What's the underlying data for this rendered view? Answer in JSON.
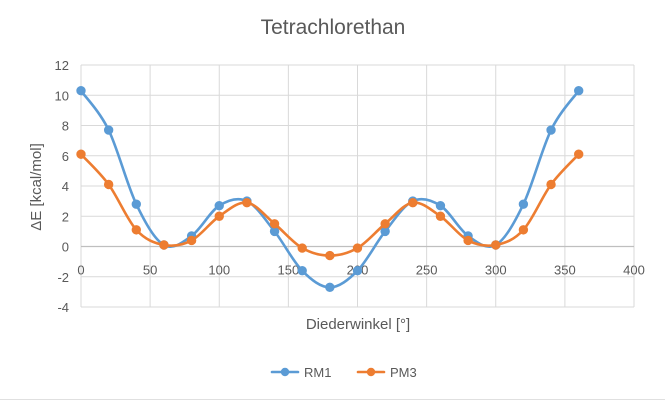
{
  "chart_data": {
    "type": "scatter",
    "title": "Tetrachlorethan",
    "xlabel": "Diederwinkel [°]",
    "ylabel": "ΔE [kcal/mol]",
    "xlim": [
      0,
      400
    ],
    "ylim": [
      -4,
      12
    ],
    "xticks": [
      0,
      50,
      100,
      150,
      200,
      250,
      300,
      350,
      400
    ],
    "yticks": [
      -4,
      -2,
      0,
      2,
      4,
      6,
      8,
      10,
      12
    ],
    "grid": true,
    "smooth_lines": true,
    "legend_position": "bottom",
    "series": [
      {
        "name": "RM1",
        "color": "#5B9BD5",
        "x": [
          0,
          20,
          40,
          60,
          80,
          100,
          120,
          140,
          160,
          180,
          200,
          220,
          240,
          260,
          280,
          300,
          320,
          340,
          360
        ],
        "y": [
          10.3,
          7.7,
          2.8,
          0.1,
          0.7,
          2.7,
          3.0,
          1.0,
          -1.6,
          -2.7,
          -1.6,
          1.0,
          3.0,
          2.7,
          0.7,
          0.1,
          2.8,
          7.7,
          10.3
        ]
      },
      {
        "name": "PM3",
        "color": "#ED7D31",
        "x": [
          0,
          20,
          40,
          60,
          80,
          100,
          120,
          140,
          160,
          180,
          200,
          220,
          240,
          260,
          280,
          300,
          320,
          340,
          360
        ],
        "y": [
          6.1,
          4.1,
          1.1,
          0.1,
          0.4,
          2.0,
          2.9,
          1.5,
          -0.1,
          -0.6,
          -0.1,
          1.5,
          2.9,
          2.0,
          0.4,
          0.1,
          1.1,
          4.1,
          6.1
        ]
      }
    ]
  }
}
